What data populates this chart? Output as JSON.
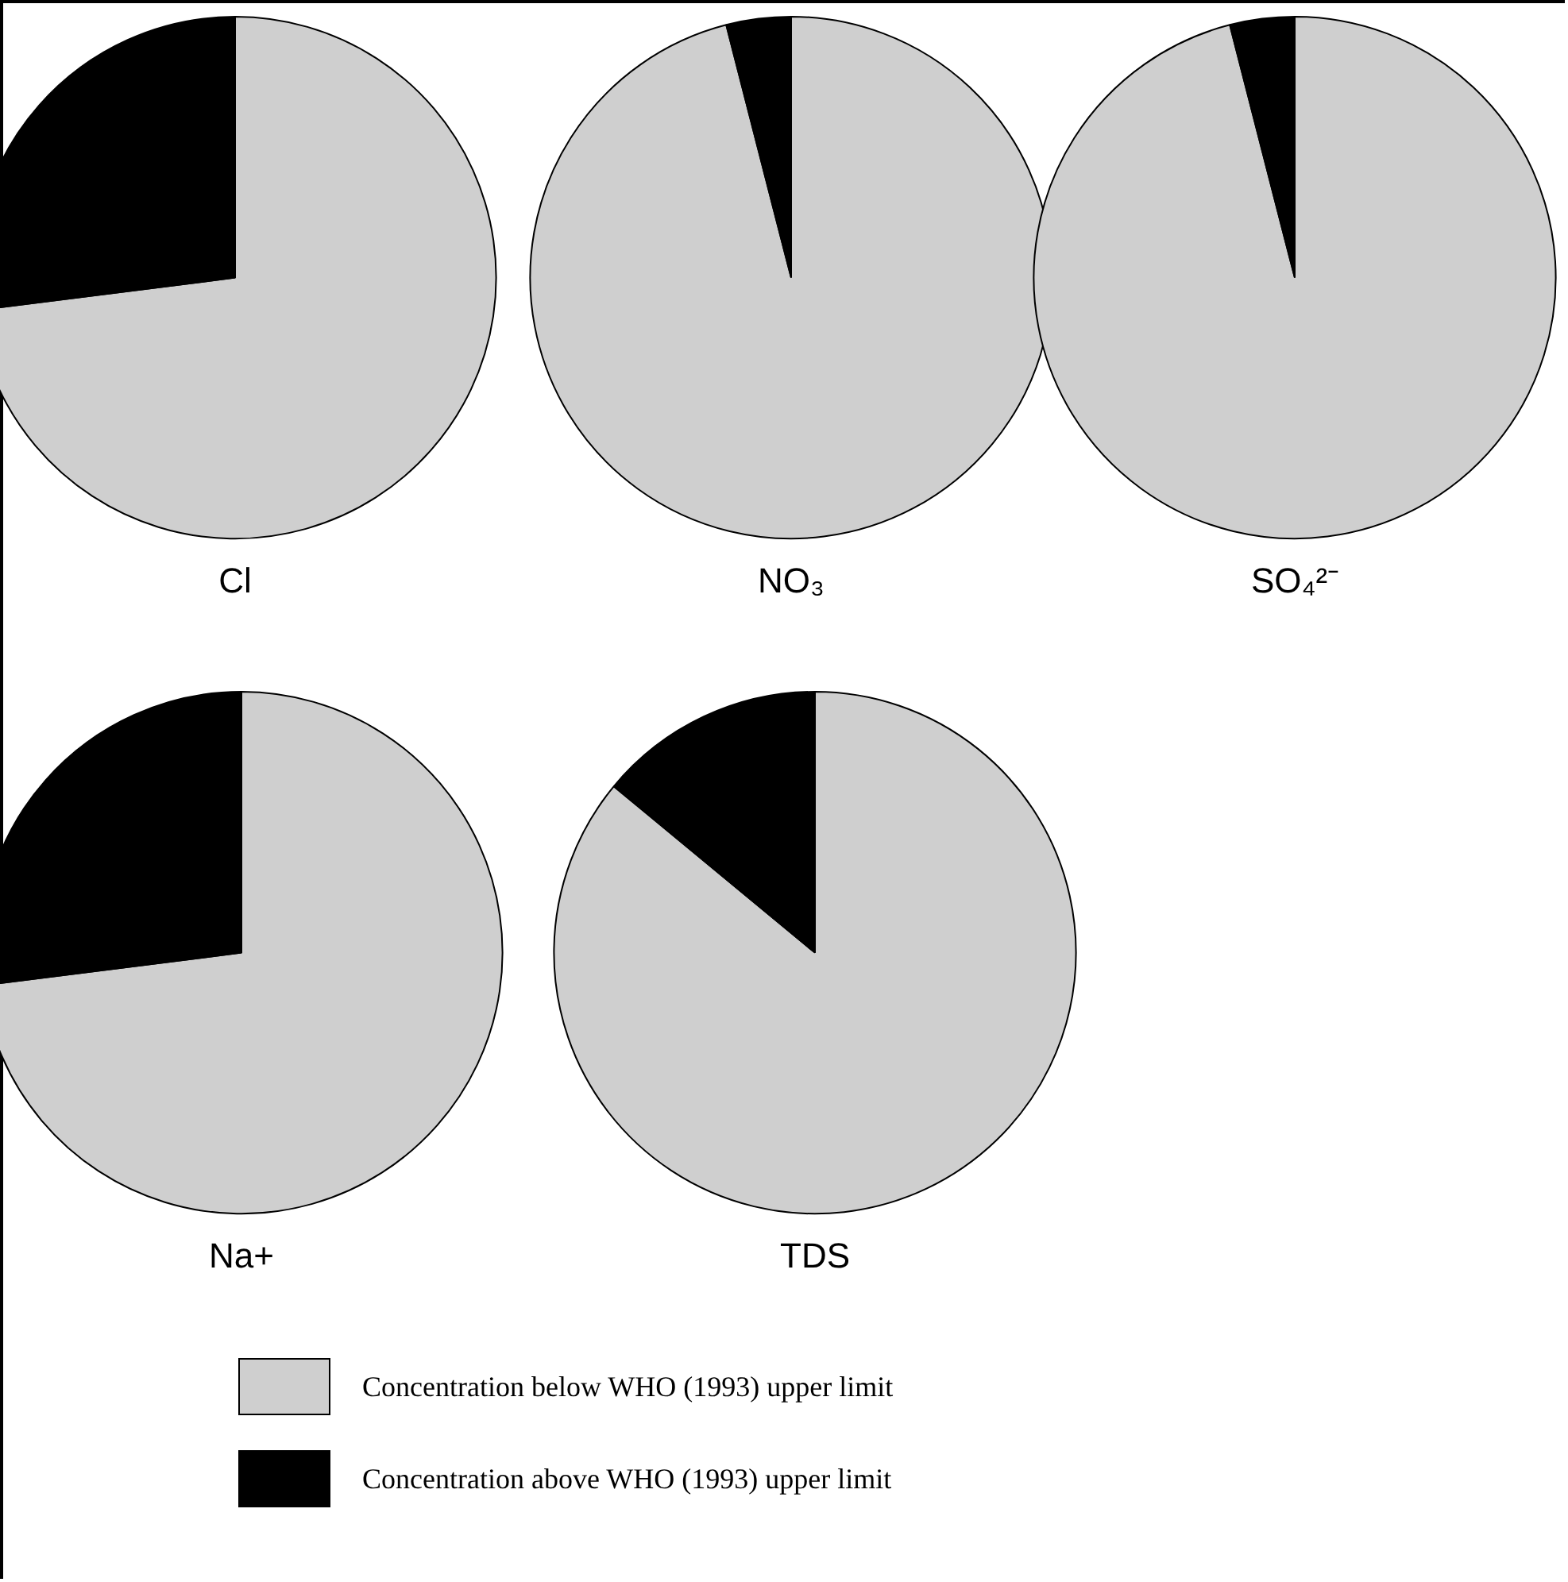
{
  "chart_data": [
    {
      "type": "pie",
      "title": "Cl",
      "categories": [
        "Concentration below WHO (1993) upper limit",
        "Concentration above WHO (1993) upper limit"
      ],
      "values": [
        73,
        27
      ],
      "colors": [
        "#cfcfcf",
        "#000000"
      ],
      "legend": "bottom"
    },
    {
      "type": "pie",
      "title": "NO₃",
      "categories": [
        null,
        null
      ],
      "values": [
        96,
        4
      ],
      "colors": [
        "#cfcfcf",
        "#000000"
      ]
    },
    {
      "type": "pie",
      "title": "SO₄²⁻",
      "categories": [
        null,
        null
      ],
      "values": [
        96,
        4
      ],
      "colors": [
        "#cfcfcf",
        "#000000"
      ]
    },
    {
      "type": "pie",
      "title": "Na+",
      "categories": [
        null,
        null
      ],
      "values": [
        73,
        27
      ],
      "colors": [
        "#cfcfcf",
        "#000000"
      ]
    },
    {
      "type": "pie",
      "title": "TDS",
      "categories": [
        null,
        null
      ],
      "values": [
        86,
        14
      ],
      "colors": [
        "#cfcfcf",
        "#000000"
      ]
    }
  ]
}
